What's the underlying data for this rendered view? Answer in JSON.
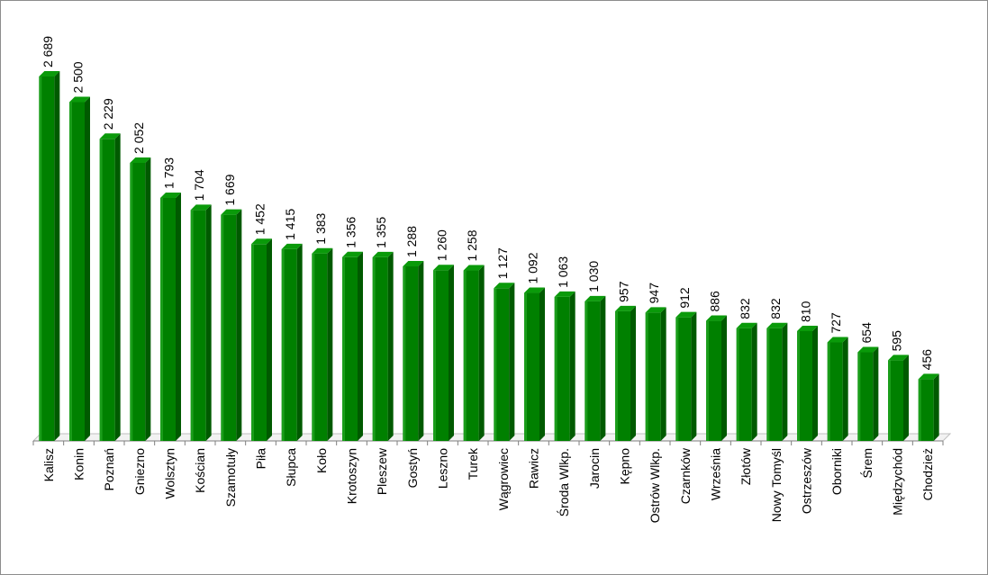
{
  "chart_data": {
    "type": "bar",
    "title": "",
    "xlabel": "",
    "ylabel": "",
    "ylim": [
      0,
      2700
    ],
    "grid": false,
    "legend": "none",
    "bar_color": "#008000",
    "bar_top_color": "#0a9a0a",
    "bar_side_color": "#005a00",
    "categories": [
      "Kalisz",
      "Konin",
      "Poznań",
      "Gniezno",
      "Wolsztyn",
      "Kościan",
      "Szamotuły",
      "Piła",
      "Słupca",
      "Koło",
      "Krotoszyn",
      "Pleszew",
      "Gostyń",
      "Leszno",
      "Turek",
      "Wągrowiec",
      "Rawicz",
      "Środa Wlkp.",
      "Jarocin",
      "Kępno",
      "Ostrów Wlkp.",
      "Czarnków",
      "Września",
      "Złotów",
      "Nowy Tomyśl",
      "Ostrzeszów",
      "Oborniki",
      "Śrem",
      "Międzychód",
      "Chodzież"
    ],
    "values": [
      2689,
      2500,
      2229,
      2052,
      1793,
      1704,
      1669,
      1452,
      1415,
      1383,
      1356,
      1355,
      1288,
      1260,
      1258,
      1127,
      1092,
      1063,
      1030,
      957,
      947,
      912,
      886,
      832,
      832,
      810,
      727,
      654,
      595,
      456
    ],
    "value_labels": [
      "2 689",
      "2 500",
      "2 229",
      "2 052",
      "1 793",
      "1 704",
      "1 669",
      "1 452",
      "1 415",
      "1 383",
      "1 356",
      "1 355",
      "1 288",
      "1 260",
      "1 258",
      "1 127",
      "1 092",
      "1 063",
      "1 030",
      "957",
      "947",
      "912",
      "886",
      "832",
      "832",
      "810",
      "727",
      "654",
      "595",
      "456"
    ]
  }
}
